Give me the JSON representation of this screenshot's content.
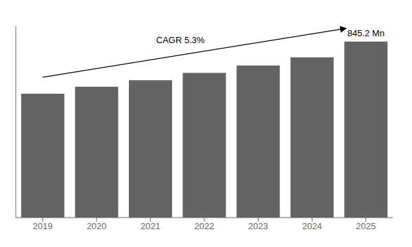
{
  "chart_data": {
    "type": "bar",
    "categories": [
      "2019",
      "2020",
      "2021",
      "2022",
      "2023",
      "2024",
      "2025"
    ],
    "values": [
      595,
      628,
      660,
      695,
      730,
      770,
      845.2
    ],
    "color": "#636363",
    "ylim": [
      0,
      920
    ],
    "yticks": [],
    "grid": false,
    "tick_labels": "x",
    "annotations": [
      "CAGR 5.3%",
      "845.2 Mn"
    ]
  }
}
